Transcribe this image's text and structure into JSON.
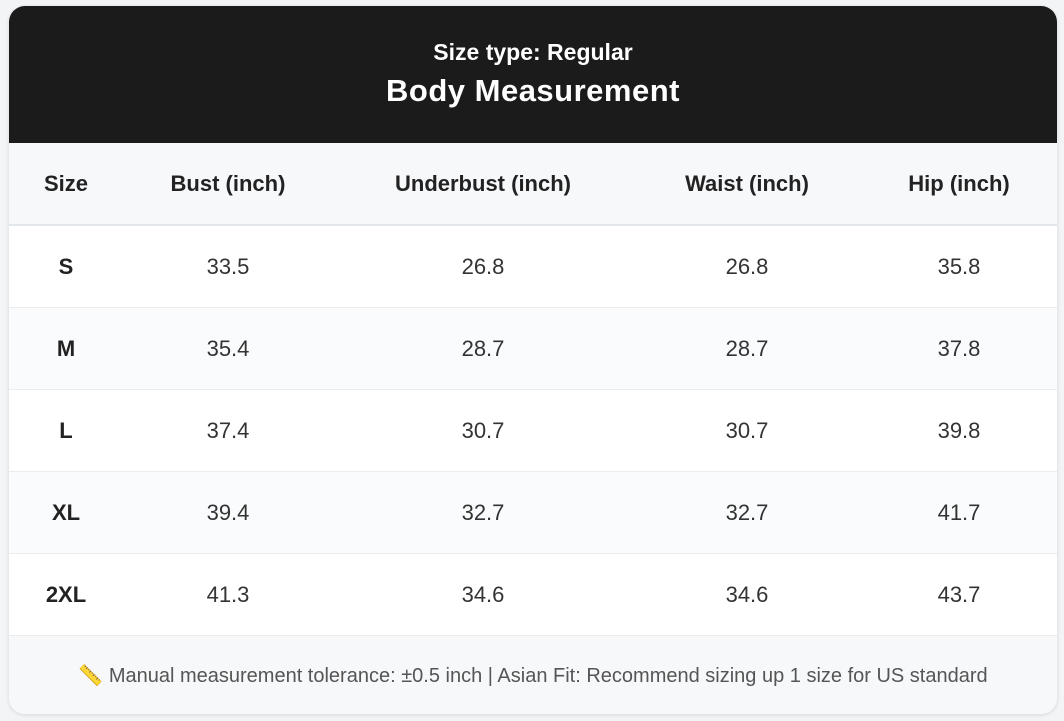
{
  "header": {
    "subtitle": "Size type: Regular",
    "title": "Body Measurement"
  },
  "table": {
    "columns": [
      "Size",
      "Bust (inch)",
      "Underbust (inch)",
      "Waist (inch)",
      "Hip (inch)"
    ],
    "rows": [
      [
        "S",
        "33.5",
        "26.8",
        "26.8",
        "35.8"
      ],
      [
        "M",
        "35.4",
        "28.7",
        "28.7",
        "37.8"
      ],
      [
        "L",
        "37.4",
        "30.7",
        "30.7",
        "39.8"
      ],
      [
        "XL",
        "39.4",
        "32.7",
        "32.7",
        "41.7"
      ],
      [
        "2XL",
        "41.3",
        "34.6",
        "34.6",
        "43.7"
      ]
    ]
  },
  "footer": {
    "note": "📏 Manual measurement tolerance: ±0.5 inch | Asian Fit: Recommend sizing up 1 size for US standard"
  }
}
